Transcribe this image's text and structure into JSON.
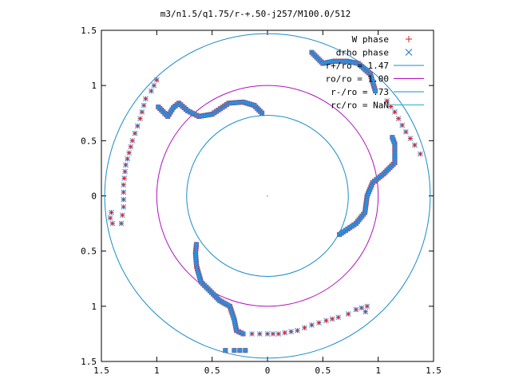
{
  "chart_data": {
    "type": "scatter",
    "title": "m3/n1.5/q1.75/r-+.50-j257/M100.0/512",
    "xlabel": "",
    "ylabel": "",
    "xlim": [
      -1.5,
      1.5
    ],
    "ylim": [
      -1.5,
      1.5
    ],
    "x_ticks": [
      -1.5,
      -1,
      -0.5,
      0,
      0.5,
      1,
      1.5
    ],
    "y_ticks": [
      -1.5,
      -1,
      -0.5,
      0,
      0.5,
      1,
      1.5
    ],
    "x_tick_labels": [
      "1.5",
      "1",
      "0.5",
      "0",
      "0.5",
      "1",
      "1.5"
    ],
    "y_tick_labels": [
      "1.5",
      "1",
      "0.5",
      "0",
      "0.5",
      "1",
      "1.5"
    ],
    "grid": false,
    "legend_position": "top-right",
    "legend": [
      {
        "label": "W phase",
        "marker": "+",
        "color": "#e41a1c"
      },
      {
        "label": "drho phase",
        "marker": "x",
        "color": "#1f77d4"
      },
      {
        "label": "r+/ro = 1.47",
        "marker": "line",
        "color": "#1a8cc8"
      },
      {
        "label": "ro/ro = 1.00",
        "marker": "line",
        "color": "#b010c0"
      },
      {
        "label": "r-/ro = .73",
        "marker": "line",
        "color": "#1a8cc8"
      },
      {
        "label": "rc/ro = NaN",
        "marker": "line",
        "color": "#20b0d0"
      }
    ],
    "circles": [
      {
        "r": 1.47,
        "color": "#1a8cc8"
      },
      {
        "r": 1.0,
        "color": "#b010c0"
      },
      {
        "r": 0.73,
        "color": "#1a8cc8"
      }
    ],
    "arms": [
      [
        [
          -0.38,
          -1.4
        ],
        [
          -0.3,
          -1.4
        ],
        [
          -0.25,
          -1.4
        ],
        [
          -0.2,
          -1.4
        ],
        [
          -0.15,
          -1.41
        ]
      ],
      [
        [
          -0.22,
          -1.25
        ],
        [
          -0.28,
          -1.22
        ],
        [
          -0.3,
          -1.12
        ],
        [
          -0.34,
          -1.0
        ],
        [
          -0.43,
          -0.95
        ],
        [
          -0.52,
          -0.86
        ],
        [
          -0.6,
          -0.78
        ],
        [
          -0.64,
          -0.64
        ],
        [
          -0.65,
          -0.52
        ],
        [
          -0.64,
          -0.42
        ]
      ],
      [
        [
          -0.14,
          -1.25
        ],
        [
          0.0,
          -1.25
        ],
        [
          0.1,
          -1.25
        ],
        [
          0.27,
          -1.22
        ],
        [
          0.4,
          -1.17
        ],
        [
          0.53,
          -1.13
        ],
        [
          0.64,
          -1.1
        ],
        [
          0.73,
          -1.07
        ],
        [
          0.8,
          -1.03
        ],
        [
          0.9,
          -1.0
        ],
        [
          0.87,
          -1.1
        ]
      ],
      [
        [
          0.65,
          -0.35
        ],
        [
          0.8,
          -0.25
        ],
        [
          0.88,
          -0.15
        ],
        [
          0.9,
          0.0
        ],
        [
          0.95,
          0.12
        ],
        [
          1.05,
          0.2
        ],
        [
          1.15,
          0.3
        ],
        [
          1.15,
          0.47
        ],
        [
          1.12,
          0.55
        ]
      ],
      [
        [
          1.08,
          0.86
        ],
        [
          1.15,
          0.76
        ],
        [
          1.25,
          0.58
        ],
        [
          1.33,
          0.46
        ],
        [
          1.38,
          0.38
        ],
        [
          1.42,
          0.36
        ]
      ],
      [
        [
          0.4,
          1.3
        ],
        [
          0.5,
          1.2
        ],
        [
          0.6,
          1.22
        ],
        [
          0.72,
          1.22
        ],
        [
          0.82,
          1.2
        ],
        [
          0.93,
          1.1
        ],
        [
          0.98,
          0.93
        ]
      ],
      [
        [
          -0.05,
          0.75
        ],
        [
          -0.12,
          0.82
        ],
        [
          -0.22,
          0.85
        ],
        [
          -0.35,
          0.84
        ],
        [
          -0.5,
          0.74
        ],
        [
          -0.62,
          0.72
        ],
        [
          -0.72,
          0.77
        ],
        [
          -0.8,
          0.84
        ],
        [
          -0.85,
          0.8
        ],
        [
          -0.9,
          0.72
        ],
        [
          -1.0,
          0.82
        ]
      ],
      [
        [
          -1.0,
          1.05
        ],
        [
          -1.05,
          0.95
        ],
        [
          -1.1,
          0.88
        ],
        [
          -1.15,
          0.7
        ],
        [
          -1.22,
          0.5
        ],
        [
          -1.28,
          0.28
        ],
        [
          -1.3,
          0.1
        ],
        [
          -1.3,
          -0.1
        ],
        [
          -1.32,
          -0.25
        ],
        [
          -1.4,
          -0.25
        ],
        [
          -1.42,
          -0.2
        ],
        [
          -1.4,
          -0.1
        ]
      ]
    ]
  }
}
